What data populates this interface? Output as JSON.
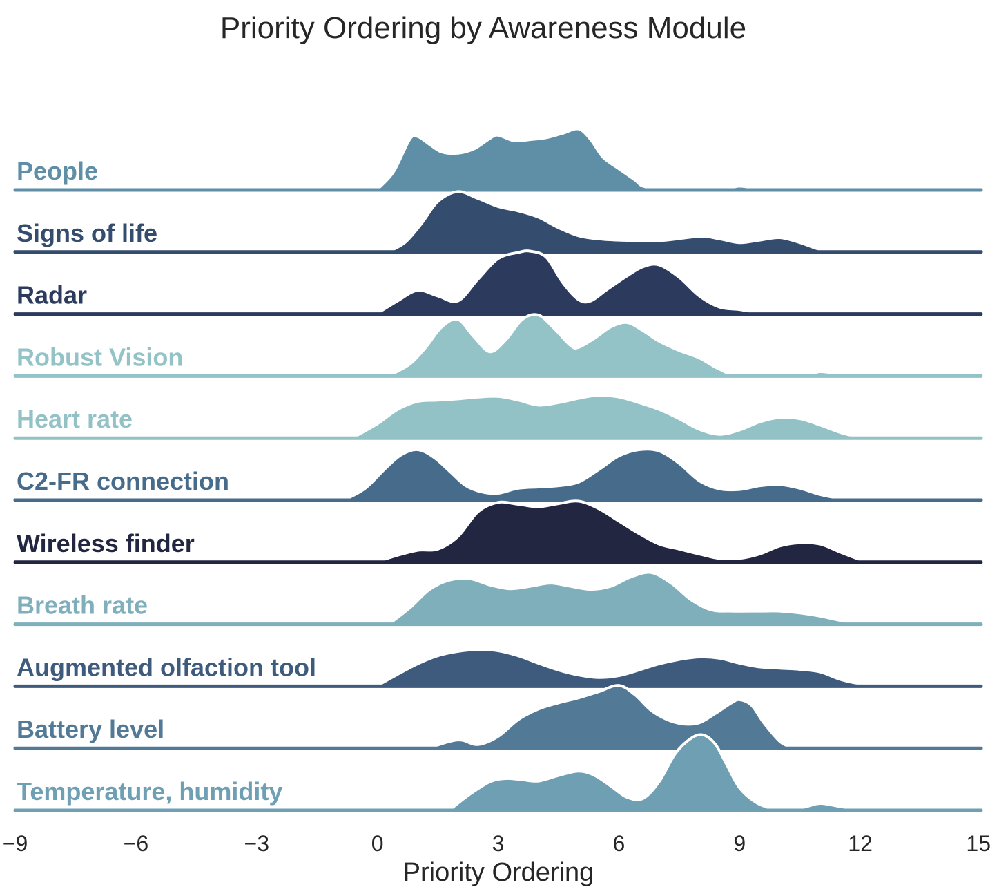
{
  "chart_data": {
    "type": "area",
    "subtype": "ridgeline",
    "title": "Priority Ordering by Awareness Module",
    "xlabel": "Priority Ordering",
    "ylabel": "",
    "xlim": [
      -9,
      15
    ],
    "x_ticks": [
      "−9",
      "−6",
      "−3",
      "0",
      "3",
      "6",
      "9",
      "12",
      "15"
    ],
    "x_tick_values": [
      -9,
      -6,
      -3,
      0,
      3,
      6,
      9,
      12,
      15
    ],
    "series": [
      {
        "name": "People",
        "color": "#5f8fa7",
        "x": [
          0,
          0.4,
          0.8,
          1.0,
          1.3,
          1.6,
          2.0,
          2.4,
          2.8,
          3.0,
          3.4,
          3.8,
          4.2,
          4.6,
          5.0,
          5.3,
          5.6,
          6.0,
          6.4,
          6.6,
          7.0,
          8.4,
          8.8,
          9.0,
          9.3,
          9.6,
          10.5
        ],
        "density": [
          0,
          0.28,
          0.8,
          0.85,
          0.72,
          0.6,
          0.58,
          0.65,
          0.82,
          0.87,
          0.78,
          0.8,
          0.83,
          0.9,
          0.97,
          0.8,
          0.52,
          0.33,
          0.15,
          0.05,
          0.02,
          0,
          0.03,
          0.05,
          0.03,
          0,
          0
        ]
      },
      {
        "name": "Signs of life",
        "color": "#344c6d",
        "x": [
          0.3,
          0.7,
          1.1,
          1.5,
          2.0,
          2.5,
          3.0,
          3.5,
          4.0,
          4.5,
          5.0,
          5.5,
          6.0,
          7.0,
          8.0,
          8.5,
          9.0,
          9.5,
          10.0,
          10.5,
          11.0,
          11.5
        ],
        "density": [
          0,
          0.15,
          0.45,
          0.8,
          0.96,
          0.85,
          0.72,
          0.65,
          0.55,
          0.38,
          0.25,
          0.2,
          0.18,
          0.17,
          0.24,
          0.2,
          0.14,
          0.18,
          0.22,
          0.14,
          0.03,
          0
        ]
      },
      {
        "name": "Radar",
        "color": "#2b3a5d",
        "x": [
          0,
          0.5,
          1.0,
          1.5,
          2.0,
          2.5,
          3.0,
          3.5,
          3.8,
          4.2,
          4.6,
          5.0,
          5.3,
          5.7,
          6.2,
          6.6,
          7.0,
          7.5,
          8.0,
          8.5,
          9.0,
          9.5
        ],
        "density": [
          0,
          0.2,
          0.37,
          0.28,
          0.2,
          0.55,
          0.88,
          0.98,
          1.0,
          0.9,
          0.5,
          0.22,
          0.2,
          0.38,
          0.6,
          0.75,
          0.78,
          0.58,
          0.28,
          0.1,
          0.06,
          0
        ]
      },
      {
        "name": "Robust Vision",
        "color": "#93c3c7",
        "x": [
          0.3,
          0.8,
          1.2,
          1.6,
          2.0,
          2.4,
          2.8,
          3.2,
          3.6,
          4.0,
          4.4,
          4.8,
          5.0,
          5.4,
          5.8,
          6.2,
          6.6,
          7.0,
          7.5,
          8.0,
          8.5,
          9.0,
          10.5,
          11.0,
          11.4,
          12.0
        ],
        "density": [
          0,
          0.18,
          0.45,
          0.78,
          0.9,
          0.62,
          0.38,
          0.58,
          0.9,
          0.97,
          0.75,
          0.48,
          0.45,
          0.6,
          0.78,
          0.85,
          0.72,
          0.55,
          0.4,
          0.28,
          0.1,
          0,
          0,
          0.06,
          0.03,
          0
        ]
      },
      {
        "name": "Heart rate",
        "color": "#92c1c6",
        "x": [
          -0.6,
          0,
          0.5,
          1.0,
          1.5,
          2.0,
          2.5,
          3.0,
          3.5,
          4.0,
          4.5,
          5.0,
          5.5,
          6.0,
          6.5,
          7.0,
          7.5,
          8.0,
          8.5,
          9.0,
          9.5,
          10.0,
          10.5,
          11.0,
          11.5,
          12.0
        ],
        "density": [
          0,
          0.22,
          0.45,
          0.58,
          0.6,
          0.62,
          0.65,
          0.66,
          0.6,
          0.52,
          0.56,
          0.63,
          0.68,
          0.65,
          0.56,
          0.45,
          0.3,
          0.13,
          0.05,
          0.12,
          0.25,
          0.32,
          0.3,
          0.2,
          0.08,
          0
        ]
      },
      {
        "name": "C2-FR connection",
        "color": "#476b8a",
        "x": [
          -0.8,
          -0.3,
          0.2,
          0.6,
          1.0,
          1.4,
          1.8,
          2.2,
          2.6,
          3.0,
          3.5,
          4.0,
          4.5,
          5.0,
          5.5,
          6.0,
          6.5,
          7.0,
          7.5,
          8.0,
          8.5,
          9.0,
          9.5,
          10.0,
          10.5,
          11.0,
          11.5,
          12.0
        ],
        "density": [
          0,
          0.18,
          0.5,
          0.72,
          0.8,
          0.68,
          0.45,
          0.22,
          0.12,
          0.1,
          0.18,
          0.2,
          0.22,
          0.28,
          0.48,
          0.7,
          0.8,
          0.78,
          0.58,
          0.3,
          0.17,
          0.16,
          0.22,
          0.24,
          0.18,
          0.08,
          0.02,
          0
        ]
      },
      {
        "name": "Wireless finder",
        "color": "#222641",
        "x": [
          0,
          0.5,
          1.0,
          1.5,
          2.0,
          2.5,
          3.0,
          3.5,
          4.0,
          4.5,
          5.0,
          5.5,
          6.0,
          6.5,
          7.0,
          7.5,
          8.0,
          8.5,
          9.0,
          9.5,
          10.0,
          10.5,
          11.0,
          11.5,
          12.0,
          12.3
        ],
        "density": [
          0,
          0.1,
          0.18,
          0.2,
          0.4,
          0.8,
          0.95,
          0.92,
          0.88,
          0.93,
          0.97,
          0.85,
          0.65,
          0.45,
          0.28,
          0.2,
          0.12,
          0.05,
          0.05,
          0.12,
          0.25,
          0.3,
          0.28,
          0.15,
          0.03,
          0
        ]
      },
      {
        "name": "Breath rate",
        "color": "#7fafbb",
        "x": [
          0.3,
          0.8,
          1.3,
          1.8,
          2.3,
          2.8,
          3.3,
          3.8,
          4.3,
          4.8,
          5.3,
          5.8,
          6.3,
          6.8,
          7.3,
          7.8,
          8.3,
          8.8,
          9.5,
          10.0,
          10.5,
          11.0,
          11.5,
          12.0
        ],
        "density": [
          0,
          0.25,
          0.55,
          0.7,
          0.72,
          0.62,
          0.56,
          0.6,
          0.65,
          0.6,
          0.55,
          0.6,
          0.75,
          0.82,
          0.65,
          0.38,
          0.22,
          0.2,
          0.2,
          0.2,
          0.17,
          0.12,
          0.05,
          0
        ]
      },
      {
        "name": "Augmented olfaction tool",
        "color": "#3e5b7e",
        "x": [
          0,
          0.5,
          1.0,
          1.5,
          2.0,
          2.5,
          3.0,
          3.5,
          4.0,
          4.5,
          5.0,
          5.5,
          6.0,
          6.5,
          7.0,
          7.5,
          8.0,
          8.5,
          9.0,
          9.5,
          10.0,
          10.5,
          11.0,
          11.5,
          12.0,
          12.5
        ],
        "density": [
          0,
          0.18,
          0.35,
          0.48,
          0.55,
          0.58,
          0.56,
          0.48,
          0.36,
          0.25,
          0.17,
          0.13,
          0.16,
          0.25,
          0.35,
          0.42,
          0.46,
          0.44,
          0.36,
          0.3,
          0.28,
          0.26,
          0.22,
          0.1,
          0.03,
          0
        ]
      },
      {
        "name": "Battery level",
        "color": "#527a96",
        "x": [
          1.3,
          1.8,
          2.1,
          2.5,
          3.0,
          3.5,
          4.0,
          4.5,
          5.0,
          5.5,
          6.0,
          6.4,
          6.8,
          7.2,
          7.6,
          8.0,
          8.4,
          8.8,
          9.0,
          9.3,
          9.6,
          10.0,
          10.3
        ],
        "density": [
          0,
          0.1,
          0.12,
          0.05,
          0.18,
          0.45,
          0.62,
          0.72,
          0.8,
          0.9,
          1.0,
          0.85,
          0.6,
          0.45,
          0.38,
          0.4,
          0.55,
          0.72,
          0.77,
          0.68,
          0.4,
          0.1,
          0
        ]
      },
      {
        "name": "Temperature, humidity",
        "color": "#6e9fb3",
        "x": [
          1.8,
          2.3,
          2.8,
          3.2,
          3.6,
          4.0,
          4.5,
          5.0,
          5.4,
          5.8,
          6.2,
          6.6,
          7.0,
          7.4,
          7.8,
          8.1,
          8.4,
          8.7,
          9.0,
          9.4,
          9.8,
          10.2,
          10.6,
          11.0,
          11.5,
          12.0
        ],
        "density": [
          0,
          0.25,
          0.45,
          0.5,
          0.48,
          0.46,
          0.55,
          0.62,
          0.55,
          0.38,
          0.2,
          0.18,
          0.45,
          0.9,
          1.15,
          1.2,
          1.05,
          0.7,
          0.35,
          0.12,
          0.02,
          0,
          0.04,
          0.1,
          0.05,
          0
        ]
      }
    ]
  }
}
